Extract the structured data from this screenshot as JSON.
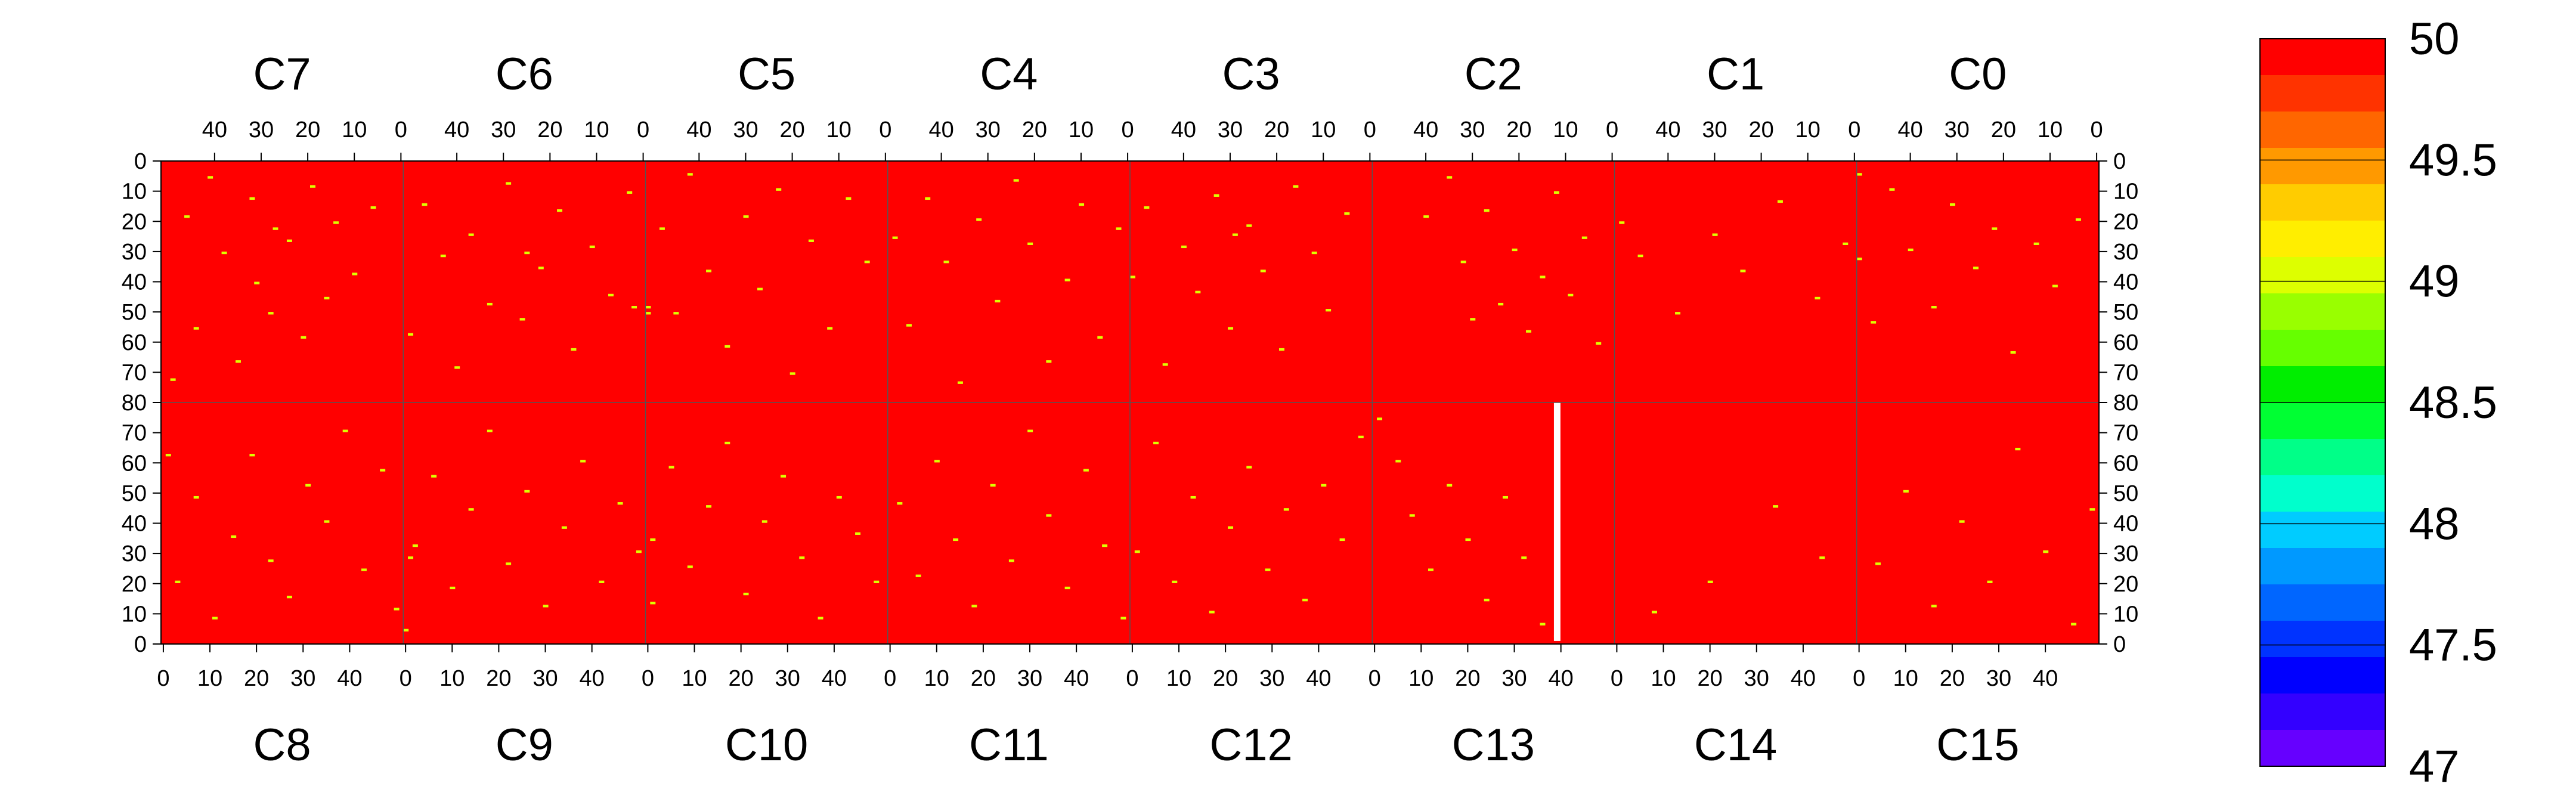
{
  "chart_data": {
    "type": "heatmap",
    "title": "",
    "chips": {
      "top": [
        "C7",
        "C6",
        "C5",
        "C4",
        "C3",
        "C2",
        "C1",
        "C0"
      ],
      "bottom": [
        "C8",
        "C9",
        "C10",
        "C11",
        "C12",
        "C13",
        "C14",
        "C15"
      ]
    },
    "columns_per_chip": 52,
    "rows_per_half": 80,
    "x_ticks_top": [
      "40",
      "30",
      "20",
      "10",
      "0"
    ],
    "x_ticks_bottom": [
      "0",
      "10",
      "20",
      "30",
      "40"
    ],
    "y_ticks_top": [
      "0",
      "10",
      "20",
      "30",
      "40",
      "50",
      "60",
      "70",
      "80"
    ],
    "y_ticks_bottom": [
      "80",
      "70",
      "60",
      "50",
      "40",
      "30",
      "20",
      "10",
      "0"
    ],
    "color_scale": {
      "min": 47,
      "max": 50,
      "tick_labels": [
        "50",
        "49.5",
        "49",
        "48.5",
        "48",
        "47.5",
        "47"
      ],
      "colors": [
        "#ff0000",
        "#ff3300",
        "#ff6600",
        "#ff9900",
        "#ffcc00",
        "#ffee00",
        "#ddff00",
        "#99ff00",
        "#66ff00",
        "#00ee00",
        "#00ff33",
        "#00ff88",
        "#00ffcc",
        "#00ccff",
        "#0099ff",
        "#0066ff",
        "#0033ff",
        "#0000ff",
        "#3300ff",
        "#6600ff"
      ]
    },
    "background_value": 50,
    "background_color": "#ff0000",
    "outlier_color": "#ddff00",
    "cells": [
      [
        "C7",
        6,
        15
      ],
      [
        "C7",
        10,
        37
      ],
      [
        "C7",
        14,
        20
      ],
      [
        "C7",
        16,
        45
      ],
      [
        "C7",
        19,
        8
      ],
      [
        "C7",
        21,
        58
      ],
      [
        "C7",
        24,
        26
      ],
      [
        "C7",
        28,
        50
      ],
      [
        "C7",
        32,
        12
      ],
      [
        "C7",
        35,
        66
      ],
      [
        "C7",
        38,
        30
      ],
      [
        "C7",
        41,
        5
      ],
      [
        "C7",
        44,
        55
      ],
      [
        "C7",
        46,
        18
      ],
      [
        "C7",
        49,
        72
      ],
      [
        "C7",
        27,
        22
      ],
      [
        "C7",
        31,
        40
      ],
      [
        "C6",
        3,
        10
      ],
      [
        "C6",
        7,
        44
      ],
      [
        "C6",
        11,
        28
      ],
      [
        "C6",
        15,
        62
      ],
      [
        "C6",
        18,
        16
      ],
      [
        "C6",
        22,
        35
      ],
      [
        "C6",
        26,
        52
      ],
      [
        "C6",
        29,
        7
      ],
      [
        "C6",
        33,
        47
      ],
      [
        "C6",
        37,
        24
      ],
      [
        "C6",
        40,
        68
      ],
      [
        "C6",
        43,
        31
      ],
      [
        "C6",
        47,
        14
      ],
      [
        "C6",
        50,
        57
      ],
      [
        "C6",
        25,
        30
      ],
      [
        "C6",
        2,
        48
      ],
      [
        "C5",
        4,
        33
      ],
      [
        "C5",
        8,
        12
      ],
      [
        "C5",
        12,
        55
      ],
      [
        "C5",
        16,
        26
      ],
      [
        "C5",
        20,
        70
      ],
      [
        "C5",
        23,
        9
      ],
      [
        "C5",
        27,
        42
      ],
      [
        "C5",
        30,
        18
      ],
      [
        "C5",
        34,
        61
      ],
      [
        "C5",
        38,
        36
      ],
      [
        "C5",
        42,
        4
      ],
      [
        "C5",
        45,
        50
      ],
      [
        "C5",
        48,
        22
      ],
      [
        "C5",
        51,
        48
      ],
      [
        "C5",
        51,
        50
      ],
      [
        "C4",
        2,
        22
      ],
      [
        "C4",
        6,
        58
      ],
      [
        "C4",
        10,
        14
      ],
      [
        "C4",
        13,
        39
      ],
      [
        "C4",
        17,
        66
      ],
      [
        "C4",
        21,
        27
      ],
      [
        "C4",
        24,
        6
      ],
      [
        "C4",
        28,
        46
      ],
      [
        "C4",
        32,
        19
      ],
      [
        "C4",
        36,
        73
      ],
      [
        "C4",
        39,
        33
      ],
      [
        "C4",
        43,
        12
      ],
      [
        "C4",
        47,
        54
      ],
      [
        "C4",
        50,
        25
      ],
      [
        "C3",
        5,
        17
      ],
      [
        "C3",
        9,
        49
      ],
      [
        "C3",
        12,
        30
      ],
      [
        "C3",
        16,
        8
      ],
      [
        "C3",
        19,
        62
      ],
      [
        "C3",
        23,
        36
      ],
      [
        "C3",
        26,
        21
      ],
      [
        "C3",
        30,
        55
      ],
      [
        "C3",
        33,
        11
      ],
      [
        "C3",
        37,
        43
      ],
      [
        "C3",
        40,
        28
      ],
      [
        "C3",
        44,
        67
      ],
      [
        "C3",
        48,
        15
      ],
      [
        "C3",
        51,
        38
      ],
      [
        "C3",
        29,
        24
      ],
      [
        "C2",
        3,
        60
      ],
      [
        "C2",
        6,
        25
      ],
      [
        "C2",
        9,
        44
      ],
      [
        "C2",
        12,
        10
      ],
      [
        "C2",
        15,
        38
      ],
      [
        "C2",
        18,
        56
      ],
      [
        "C2",
        21,
        29
      ],
      [
        "C2",
        24,
        47
      ],
      [
        "C2",
        27,
        16
      ],
      [
        "C2",
        30,
        52
      ],
      [
        "C2",
        32,
        33
      ],
      [
        "C2",
        35,
        5
      ],
      [
        "C2",
        40,
        18
      ],
      [
        "C1",
        2,
        27
      ],
      [
        "C1",
        8,
        45
      ],
      [
        "C1",
        16,
        13
      ],
      [
        "C1",
        24,
        36
      ],
      [
        "C1",
        30,
        24
      ],
      [
        "C1",
        38,
        50
      ],
      [
        "C1",
        46,
        31
      ],
      [
        "C1",
        50,
        20
      ],
      [
        "C0",
        4,
        19
      ],
      [
        "C0",
        9,
        41
      ],
      [
        "C0",
        13,
        27
      ],
      [
        "C0",
        18,
        63
      ],
      [
        "C0",
        22,
        22
      ],
      [
        "C0",
        26,
        35
      ],
      [
        "C0",
        31,
        14
      ],
      [
        "C0",
        35,
        48
      ],
      [
        "C0",
        40,
        29
      ],
      [
        "C0",
        44,
        9
      ],
      [
        "C0",
        48,
        53
      ],
      [
        "C0",
        51,
        4
      ],
      [
        "C0",
        51,
        32
      ],
      [
        "C8",
        3,
        20
      ],
      [
        "C8",
        7,
        48
      ],
      [
        "C8",
        11,
        8
      ],
      [
        "C8",
        15,
        35
      ],
      [
        "C8",
        19,
        62
      ],
      [
        "C8",
        23,
        27
      ],
      [
        "C8",
        27,
        15
      ],
      [
        "C8",
        31,
        52
      ],
      [
        "C8",
        35,
        40
      ],
      [
        "C8",
        39,
        70
      ],
      [
        "C8",
        43,
        24
      ],
      [
        "C8",
        47,
        57
      ],
      [
        "C8",
        50,
        11
      ],
      [
        "C8",
        1,
        62
      ],
      [
        "C9",
        2,
        32
      ],
      [
        "C9",
        6,
        55
      ],
      [
        "C9",
        10,
        18
      ],
      [
        "C9",
        14,
        44
      ],
      [
        "C9",
        18,
        70
      ],
      [
        "C9",
        22,
        26
      ],
      [
        "C9",
        26,
        50
      ],
      [
        "C9",
        30,
        12
      ],
      [
        "C9",
        34,
        38
      ],
      [
        "C9",
        38,
        60
      ],
      [
        "C9",
        42,
        20
      ],
      [
        "C9",
        46,
        46
      ],
      [
        "C9",
        50,
        30
      ],
      [
        "C9",
        1,
        28
      ],
      [
        "C9",
        0,
        4
      ],
      [
        "C10",
        1,
        34
      ],
      [
        "C10",
        1,
        13
      ],
      [
        "C10",
        5,
        58
      ],
      [
        "C10",
        9,
        25
      ],
      [
        "C10",
        13,
        45
      ],
      [
        "C10",
        17,
        66
      ],
      [
        "C10",
        21,
        16
      ],
      [
        "C10",
        25,
        40
      ],
      [
        "C10",
        29,
        55
      ],
      [
        "C10",
        33,
        28
      ],
      [
        "C10",
        37,
        8
      ],
      [
        "C10",
        41,
        48
      ],
      [
        "C10",
        45,
        36
      ],
      [
        "C10",
        49,
        20
      ],
      [
        "C11",
        2,
        46
      ],
      [
        "C11",
        6,
        22
      ],
      [
        "C11",
        10,
        60
      ],
      [
        "C11",
        14,
        34
      ],
      [
        "C11",
        18,
        12
      ],
      [
        "C11",
        22,
        52
      ],
      [
        "C11",
        26,
        27
      ],
      [
        "C11",
        30,
        70
      ],
      [
        "C11",
        34,
        42
      ],
      [
        "C11",
        38,
        18
      ],
      [
        "C11",
        42,
        57
      ],
      [
        "C11",
        46,
        32
      ],
      [
        "C11",
        50,
        8
      ],
      [
        "C12",
        1,
        30
      ],
      [
        "C12",
        5,
        66
      ],
      [
        "C12",
        9,
        20
      ],
      [
        "C12",
        13,
        48
      ],
      [
        "C12",
        17,
        10
      ],
      [
        "C12",
        21,
        38
      ],
      [
        "C12",
        25,
        58
      ],
      [
        "C12",
        29,
        24
      ],
      [
        "C12",
        33,
        44
      ],
      [
        "C12",
        37,
        14
      ],
      [
        "C12",
        41,
        52
      ],
      [
        "C12",
        45,
        34
      ],
      [
        "C12",
        49,
        68
      ],
      [
        "C13",
        1,
        74
      ],
      [
        "C13",
        5,
        60
      ],
      [
        "C13",
        8,
        42
      ],
      [
        "C13",
        12,
        24
      ],
      [
        "C13",
        16,
        52
      ],
      [
        "C13",
        20,
        34
      ],
      [
        "C13",
        24,
        14
      ],
      [
        "C13",
        28,
        48
      ],
      [
        "C13",
        32,
        28
      ],
      [
        "C13",
        36,
        6
      ],
      [
        "C13",
        39,
        2
      ],
      [
        "C14",
        20,
        20
      ],
      [
        "C14",
        34,
        45
      ],
      [
        "C14",
        44,
        28
      ],
      [
        "C14",
        8,
        10
      ],
      [
        "C15",
        4,
        26
      ],
      [
        "C15",
        10,
        50
      ],
      [
        "C15",
        16,
        12
      ],
      [
        "C15",
        22,
        40
      ],
      [
        "C15",
        28,
        20
      ],
      [
        "C15",
        34,
        64
      ],
      [
        "C15",
        40,
        30
      ],
      [
        "C15",
        46,
        6
      ],
      [
        "C15",
        50,
        44
      ]
    ],
    "blank_columns": [
      [
        "C13",
        39
      ]
    ]
  }
}
